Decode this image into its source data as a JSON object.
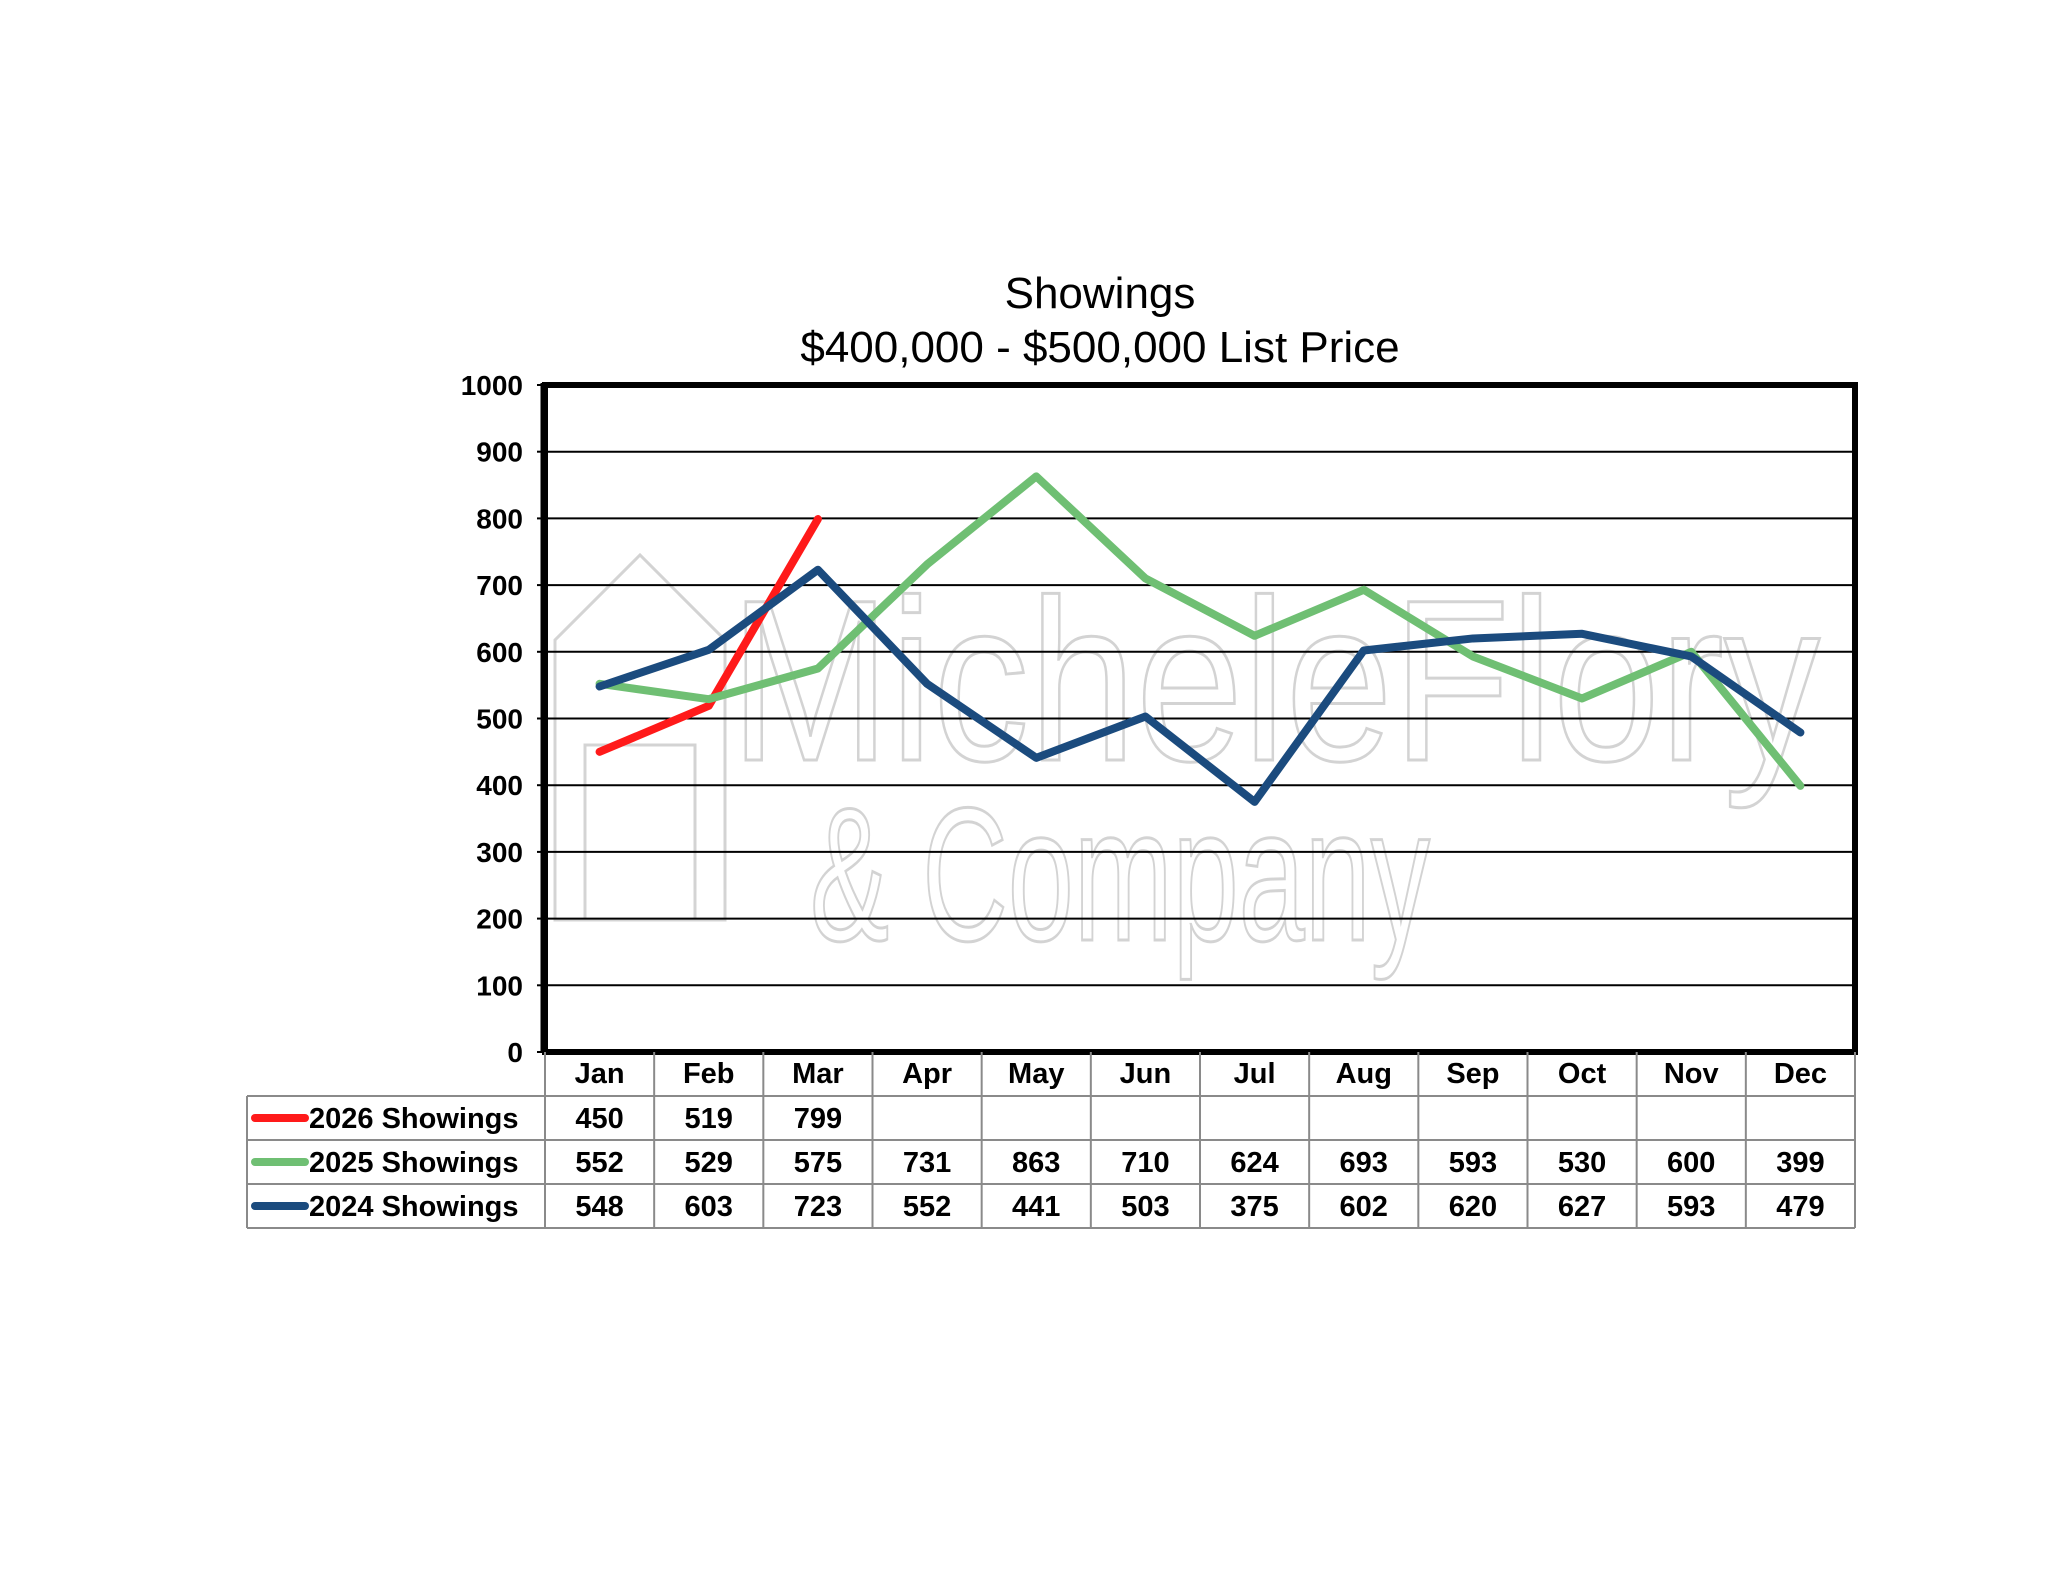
{
  "chart_data": {
    "type": "line",
    "title": "Showings",
    "subtitle": "$400,000 - $500,000 List Price",
    "categories": [
      "Jan",
      "Feb",
      "Mar",
      "Apr",
      "May",
      "Jun",
      "Jul",
      "Aug",
      "Sep",
      "Oct",
      "Nov",
      "Dec"
    ],
    "ylim": [
      0,
      1000
    ],
    "yticks": [
      0,
      100,
      200,
      300,
      400,
      500,
      600,
      700,
      800,
      900,
      1000
    ],
    "grid": true,
    "legend": "data-table-left",
    "series": [
      {
        "name": "2026 Showings",
        "color": "#ff1a1a",
        "values": [
          450,
          519,
          799,
          null,
          null,
          null,
          null,
          null,
          null,
          null,
          null,
          null
        ]
      },
      {
        "name": "2025 Showings",
        "color": "#6fbf73",
        "values": [
          552,
          529,
          575,
          731,
          863,
          710,
          624,
          693,
          593,
          530,
          600,
          399
        ]
      },
      {
        "name": "2024 Showings",
        "color": "#1b4b7e",
        "values": [
          548,
          603,
          723,
          552,
          441,
          503,
          375,
          602,
          620,
          627,
          593,
          479
        ]
      }
    ]
  },
  "watermark": {
    "line1": "MicheleFlory",
    "line2": "& Company"
  }
}
